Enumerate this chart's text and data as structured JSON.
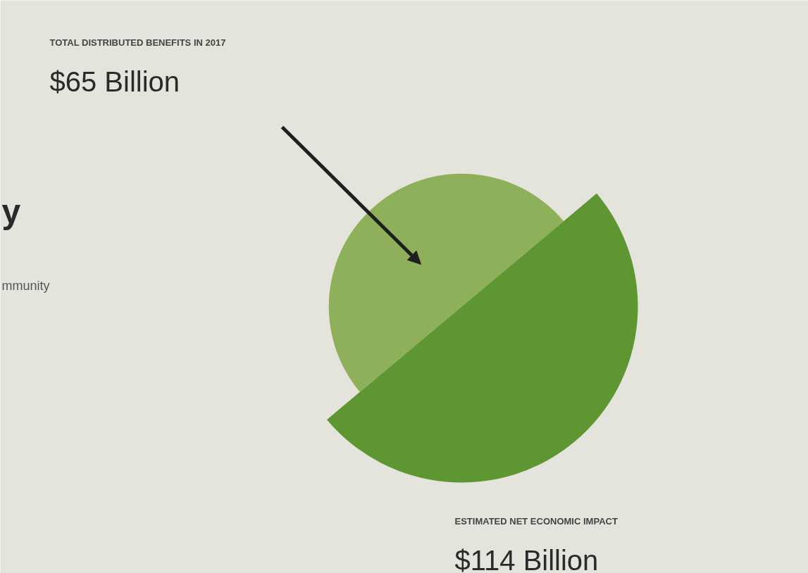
{
  "chart_data": {
    "type": "other",
    "categories": [
      "TOTAL DISTRIBUTED BENEFITS IN 2017",
      "ESTIMATED NET ECONOMIC IMPACT"
    ],
    "values": [
      65,
      114
    ],
    "value_labels": [
      "$65 Billion",
      "$114 Billion"
    ],
    "colors": [
      "#8fb05a",
      "#5e9631"
    ],
    "annotations": [
      "y",
      "mmunity"
    ]
  }
}
